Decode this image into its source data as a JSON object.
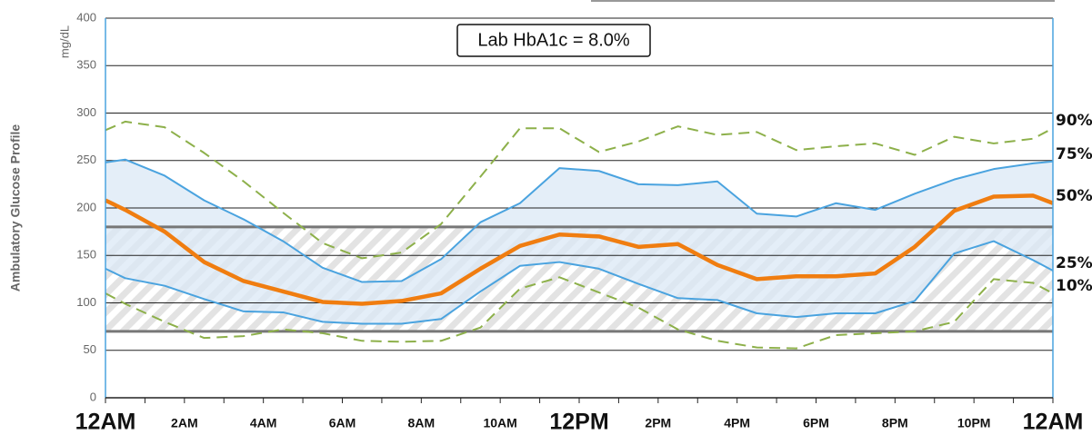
{
  "chart_data": {
    "type": "line",
    "ylabel": "Ambulatory Glucose Profile",
    "y_unit": "mg/dL",
    "annotation": "Lab HbA1c = 8.0%",
    "target_range": [
      70,
      180
    ],
    "grid": true,
    "x": [
      0,
      0.5,
      1.5,
      2.5,
      3.5,
      4.5,
      5.5,
      6.5,
      7.5,
      8.5,
      9.5,
      10.5,
      11.5,
      12.5,
      13.5,
      14.5,
      15.5,
      16.5,
      17.5,
      18.5,
      19.5,
      20.5,
      21.5,
      22.5,
      23.5,
      24
    ],
    "xlim": [
      0,
      24
    ],
    "xticks": [
      {
        "value": 0,
        "label": "12AM"
      },
      {
        "value": 2,
        "label": "2AM"
      },
      {
        "value": 4,
        "label": "4AM"
      },
      {
        "value": 6,
        "label": "6AM"
      },
      {
        "value": 8,
        "label": "8AM"
      },
      {
        "value": 10,
        "label": "10AM"
      },
      {
        "value": 12,
        "label": "12PM"
      },
      {
        "value": 14,
        "label": "2PM"
      },
      {
        "value": 16,
        "label": "4PM"
      },
      {
        "value": 18,
        "label": "6PM"
      },
      {
        "value": 20,
        "label": "8PM"
      },
      {
        "value": 22,
        "label": "10PM"
      },
      {
        "value": 24,
        "label": "12AM"
      }
    ],
    "ylim": [
      0,
      400
    ],
    "yticks": [
      0,
      50,
      100,
      150,
      200,
      250,
      300,
      350,
      400
    ],
    "band_color": "#dbe8f5",
    "series": [
      {
        "name": "90%",
        "color": "#8db04a",
        "style": "dashed",
        "values": [
          282,
          291,
          285,
          258,
          228,
          195,
          163,
          147,
          153,
          183,
          233,
          284,
          284,
          259,
          270,
          286,
          277,
          280,
          261,
          265,
          268,
          256,
          275,
          268,
          273,
          284
        ]
      },
      {
        "name": "75%",
        "color": "#4aa3df",
        "style": "solid",
        "values": [
          248,
          251,
          234,
          208,
          188,
          165,
          137,
          122,
          123,
          146,
          185,
          205,
          242,
          239,
          225,
          224,
          228,
          194,
          191,
          205,
          198,
          215,
          230,
          241,
          247,
          249
        ]
      },
      {
        "name": "50%",
        "color": "#f07d10",
        "style": "bold",
        "values": [
          208,
          198,
          175,
          143,
          123,
          112,
          101,
          99,
          102,
          110,
          136,
          160,
          172,
          170,
          159,
          162,
          140,
          125,
          128,
          128,
          131,
          159,
          197,
          212,
          213,
          205
        ]
      },
      {
        "name": "25%",
        "color": "#4aa3df",
        "style": "solid",
        "values": [
          136,
          126,
          118,
          104,
          91,
          90,
          80,
          78,
          78,
          83,
          112,
          139,
          143,
          136,
          120,
          105,
          103,
          89,
          85,
          89,
          89,
          102,
          152,
          165,
          145,
          134
        ]
      },
      {
        "name": "10%",
        "color": "#8db04a",
        "style": "dashed",
        "values": [
          110,
          99,
          80,
          63,
          65,
          72,
          68,
          60,
          59,
          60,
          74,
          115,
          127,
          111,
          95,
          72,
          60,
          53,
          52,
          66,
          68,
          70,
          80,
          125,
          121,
          110
        ]
      }
    ]
  }
}
